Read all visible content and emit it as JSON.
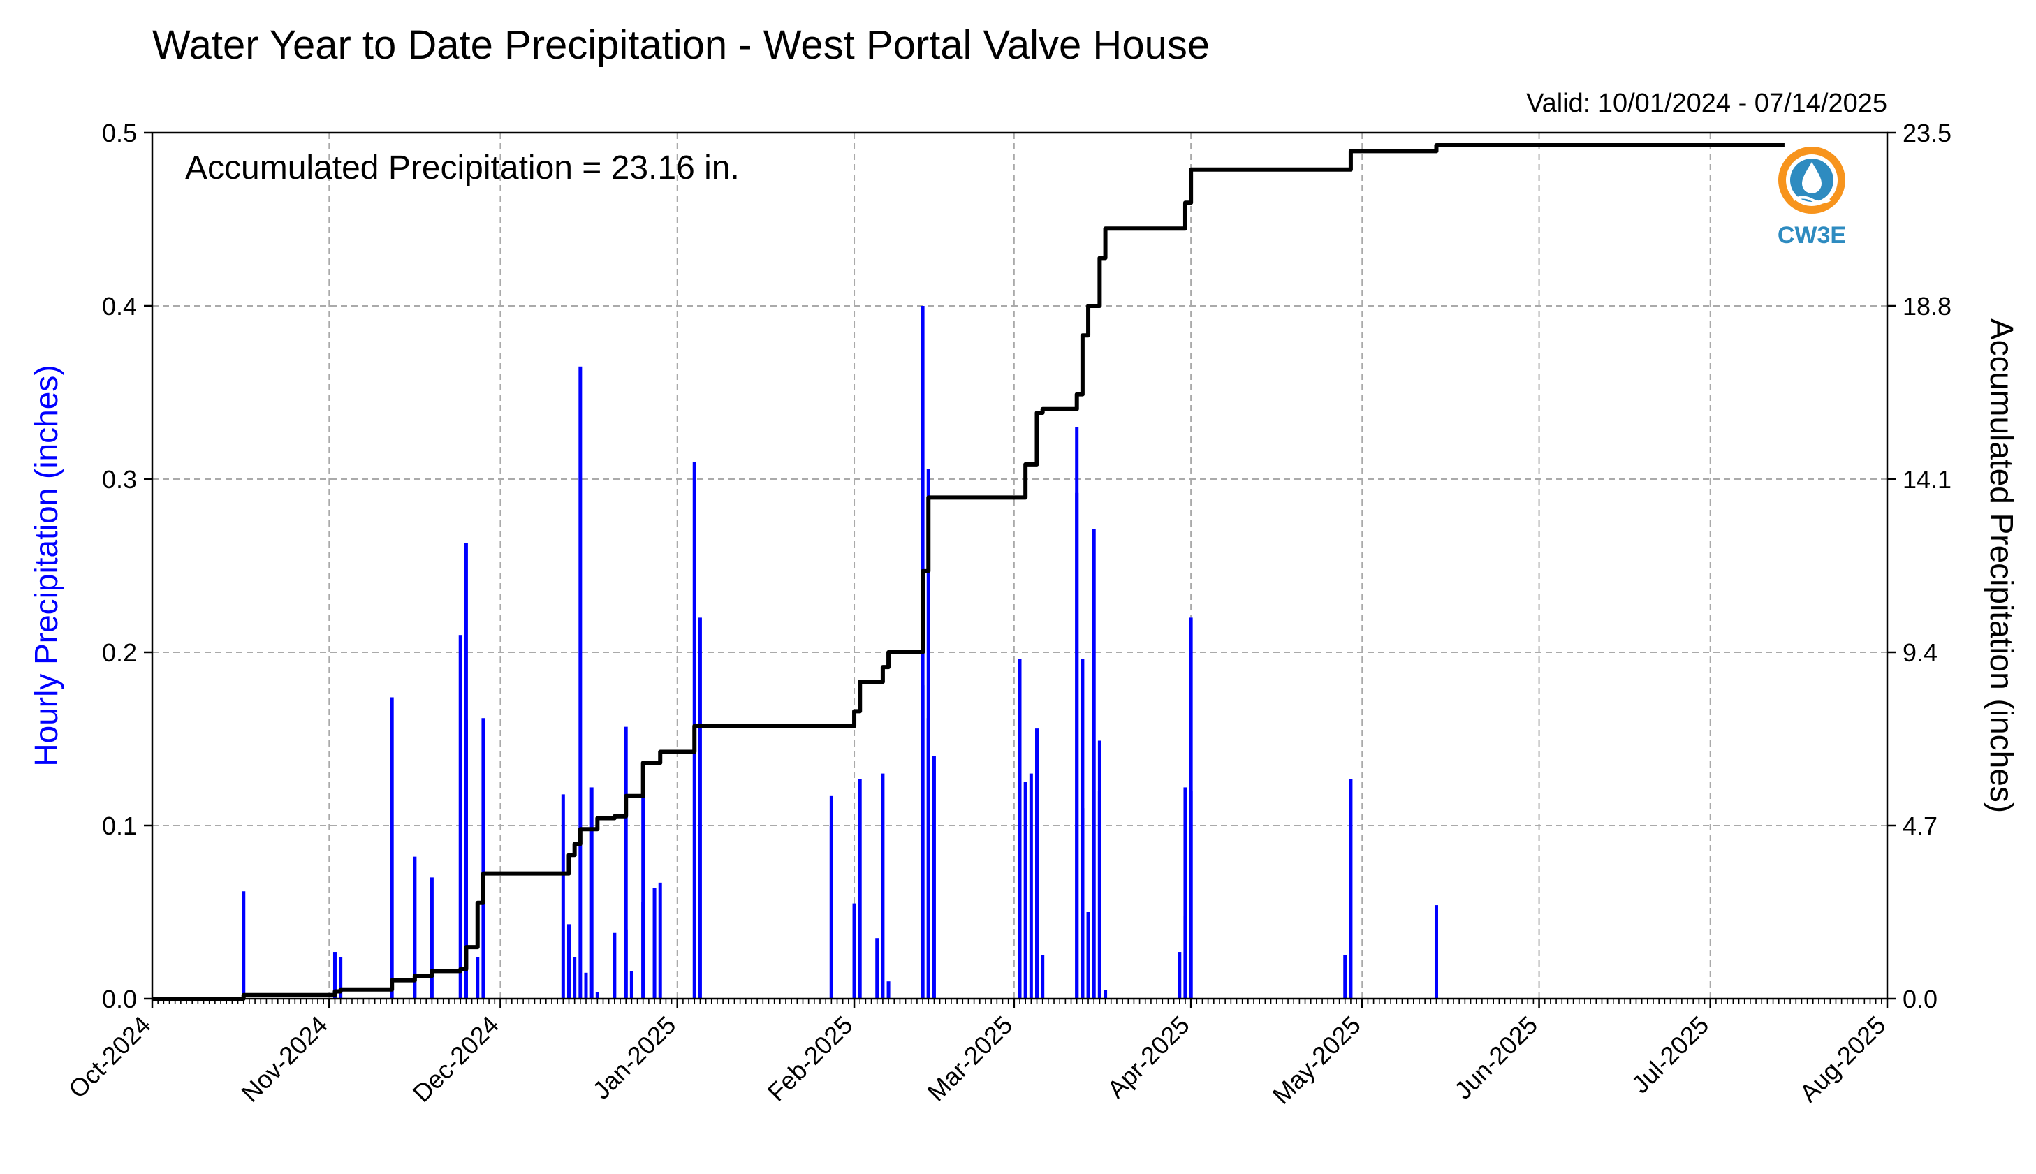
{
  "chart_data": {
    "type": "bar",
    "title": "Water Year to Date Precipitation - West Portal Valve House",
    "subtitle": "Valid: 10/01/2024 - 07/14/2025",
    "annotation": "Accumulated Precipitation = 23.16 in.",
    "logo_text": "CW3E",
    "xlabel": "",
    "ylabel": "Hourly Precipitation (inches)",
    "y2label": "Accumulated Precipitation (inches)",
    "xlim": [
      "2024-10-01",
      "2025-08-01"
    ],
    "ylim": [
      0,
      0.5
    ],
    "y2lim": [
      0,
      23.5
    ],
    "grid": true,
    "x_tick_labels": [
      "Oct-2024",
      "Nov-2024",
      "Dec-2024",
      "Jan-2025",
      "Feb-2025",
      "Mar-2025",
      "Apr-2025",
      "May-2025",
      "Jun-2025",
      "Jul-2025",
      "Aug-2025"
    ],
    "y_tick_labels": [
      "0.0",
      "0.1",
      "0.2",
      "0.3",
      "0.4",
      "0.5"
    ],
    "y2_tick_labels": [
      "0.0",
      "4.7",
      "9.4",
      "14.1",
      "18.8",
      "23.5"
    ],
    "colors": {
      "hourly": "#0000ff",
      "accumulated": "#000000",
      "ylabel": "#0000ff",
      "logo_orange": "#f7941d",
      "logo_blue": "#2e8bc0"
    },
    "series": [
      {
        "name": "Hourly Precipitation (inches)",
        "type": "bar",
        "x": [
          "2024-10-17",
          "2024-11-02",
          "2024-11-03",
          "2024-11-12",
          "2024-11-16",
          "2024-11-19",
          "2024-11-24",
          "2024-11-25",
          "2024-11-25",
          "2024-11-27",
          "2024-11-28",
          "2024-12-12",
          "2024-12-13",
          "2024-12-14",
          "2024-12-15",
          "2024-12-16",
          "2024-12-17",
          "2024-12-18",
          "2024-12-21",
          "2024-12-23",
          "2024-12-23",
          "2024-12-24",
          "2024-12-26",
          "2024-12-26",
          "2024-12-28",
          "2024-12-29",
          "2025-01-04",
          "2025-01-05",
          "2025-01-28",
          "2025-01-28",
          "2025-02-01",
          "2025-02-02",
          "2025-02-05",
          "2025-02-06",
          "2025-02-07",
          "2025-02-13",
          "2025-02-13",
          "2025-02-14",
          "2025-02-14",
          "2025-02-15",
          "2025-03-02",
          "2025-03-02",
          "2025-03-03",
          "2025-03-04",
          "2025-03-05",
          "2025-03-05",
          "2025-03-06",
          "2025-03-12",
          "2025-03-12",
          "2025-03-13",
          "2025-03-13",
          "2025-03-14",
          "2025-03-15",
          "2025-03-16",
          "2025-03-16",
          "2025-03-17",
          "2025-03-30",
          "2025-03-31",
          "2025-03-31",
          "2025-04-01",
          "2025-04-01",
          "2025-04-28",
          "2025-04-29",
          "2025-05-14"
        ],
        "values": [
          0.062,
          0.027,
          0.024,
          0.174,
          0.082,
          0.07,
          0.21,
          0.263,
          0.161,
          0.024,
          0.162,
          0.118,
          0.043,
          0.024,
          0.365,
          0.015,
          0.122,
          0.004,
          0.038,
          0.157,
          0.04,
          0.016,
          0.134,
          0.056,
          0.064,
          0.067,
          0.31,
          0.22,
          0.117,
          0.1,
          0.055,
          0.127,
          0.035,
          0.13,
          0.01,
          0.181,
          0.4,
          0.306,
          0.162,
          0.14,
          0.196,
          0.157,
          0.125,
          0.13,
          0.156,
          0.083,
          0.025,
          0.33,
          0.292,
          0.196,
          0.11,
          0.05,
          0.271,
          0.149,
          0.12,
          0.005,
          0.027,
          0.048,
          0.122,
          0.22,
          0.12,
          0.025,
          0.127,
          0.054
        ]
      },
      {
        "name": "Accumulated Precipitation (inches)",
        "type": "line",
        "x": [
          "2024-10-01",
          "2024-10-17",
          "2024-11-02",
          "2024-11-03",
          "2024-11-12",
          "2024-11-16",
          "2024-11-19",
          "2024-11-24",
          "2024-11-25",
          "2024-11-27",
          "2024-11-28",
          "2024-12-12",
          "2024-12-13",
          "2024-12-14",
          "2024-12-15",
          "2024-12-18",
          "2024-12-21",
          "2024-12-23",
          "2024-12-24",
          "2024-12-26",
          "2024-12-27",
          "2024-12-29",
          "2025-01-04",
          "2025-01-28",
          "2025-02-01",
          "2025-02-02",
          "2025-02-05",
          "2025-02-06",
          "2025-02-07",
          "2025-02-13",
          "2025-02-14",
          "2025-02-15",
          "2025-03-02",
          "2025-03-03",
          "2025-03-05",
          "2025-03-06",
          "2025-03-12",
          "2025-03-13",
          "2025-03-14",
          "2025-03-15",
          "2025-03-16",
          "2025-03-17",
          "2025-03-30",
          "2025-03-31",
          "2025-04-01",
          "2025-04-28",
          "2025-04-29",
          "2025-05-14",
          "2025-07-14"
        ],
        "values": [
          0.0,
          0.1,
          0.2,
          0.25,
          0.5,
          0.62,
          0.75,
          0.8,
          1.4,
          2.6,
          3.4,
          3.4,
          3.9,
          4.2,
          4.6,
          4.9,
          4.95,
          5.5,
          5.5,
          6.4,
          6.4,
          6.7,
          7.4,
          7.4,
          7.8,
          8.6,
          8.6,
          9.0,
          9.4,
          11.6,
          13.6,
          13.6,
          13.6,
          14.5,
          15.9,
          16.0,
          16.4,
          18.0,
          18.8,
          18.8,
          20.1,
          20.9,
          20.9,
          21.6,
          22.5,
          22.5,
          23.0,
          23.16,
          23.16
        ]
      }
    ]
  }
}
